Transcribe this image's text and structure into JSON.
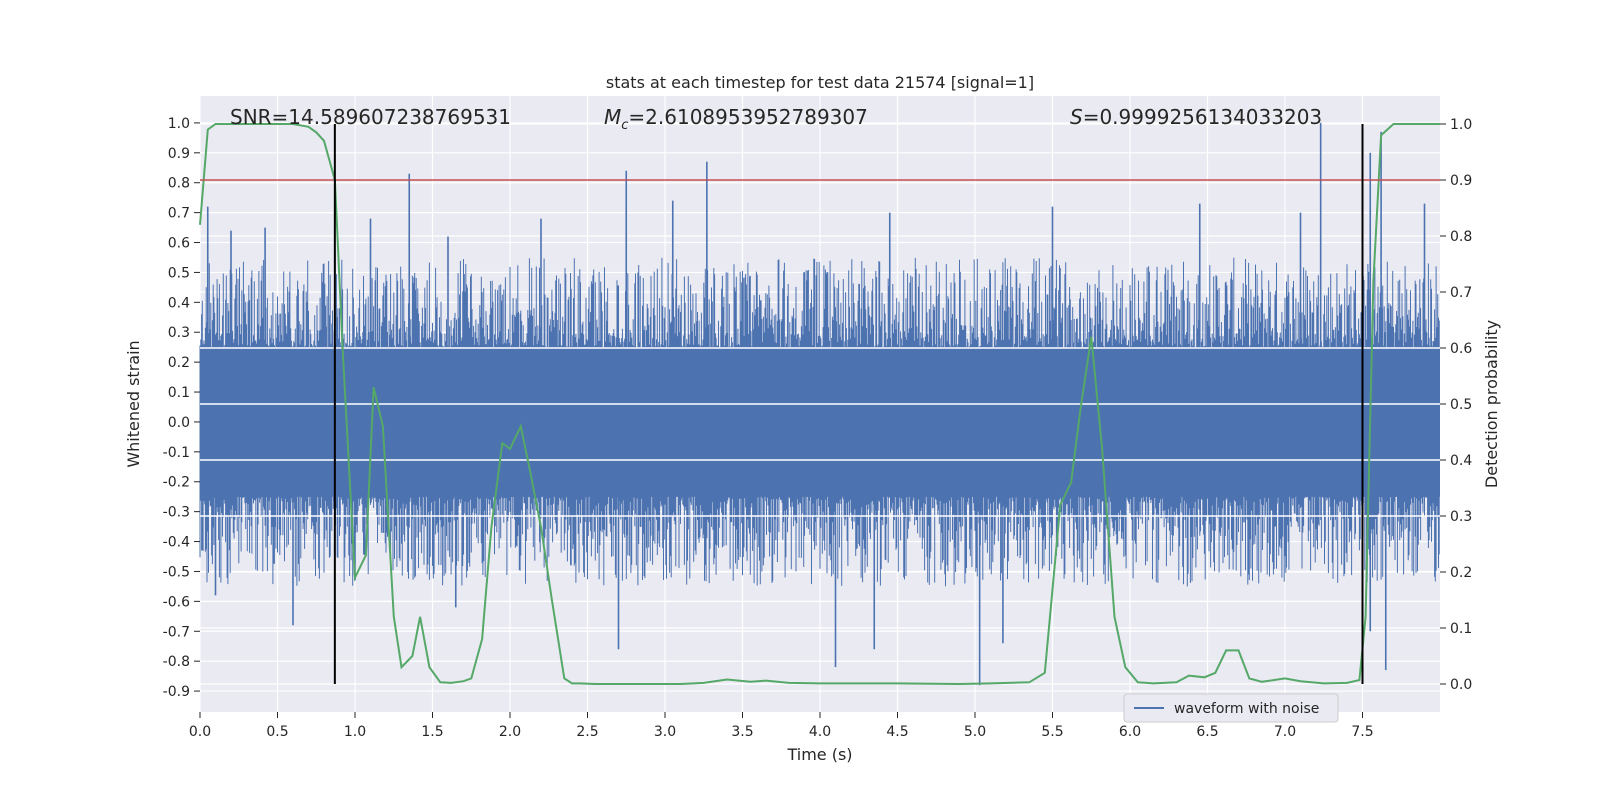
{
  "chart_data": {
    "type": "line",
    "title": "stats at each timestep for test data 21574 [signal=1]",
    "xlabel": "Time (s)",
    "ylabel_left": "Whitened strain",
    "ylabel_right": "Detection probability",
    "xlim": [
      0,
      8
    ],
    "ylim_left": [
      -0.97,
      1.09
    ],
    "ylim_right": [
      0,
      1
    ],
    "x_ticks": [
      "0.0",
      "0.5",
      "1.0",
      "1.5",
      "2.0",
      "2.5",
      "3.0",
      "3.5",
      "4.0",
      "4.5",
      "5.0",
      "5.5",
      "6.0",
      "6.5",
      "7.0",
      "7.5"
    ],
    "y_ticks_left": [
      "1.0",
      "0.9",
      "0.8",
      "0.7",
      "0.6",
      "0.5",
      "0.4",
      "0.3",
      "0.2",
      "0.1",
      "0.0",
      "-0.1",
      "-0.2",
      "-0.3",
      "-0.4",
      "-0.5",
      "-0.6",
      "-0.7",
      "-0.8",
      "-0.9"
    ],
    "y_ticks_right": [
      "1.0",
      "0.9",
      "0.8",
      "0.7",
      "0.6",
      "0.5",
      "0.4",
      "0.3",
      "0.2",
      "0.1",
      "0.0"
    ],
    "grid": true,
    "legend_position": "lower-right",
    "annotations": {
      "snr": "SNR=14.589607238769531",
      "mc_symbol": "M",
      "mc_sub": "c",
      "mc_value": "=2.6108953952789307",
      "s_symbol": "S",
      "s_value": "=0.9999256134033203"
    },
    "vertical_lines_x": [
      0.87,
      7.5
    ],
    "threshold": 0.9,
    "series": [
      {
        "name": "waveform with noise",
        "axis": "left",
        "color": "#4c72b0",
        "envelope": {
          "upper": 0.55,
          "lower": -0.55,
          "core": 0.25
        },
        "peaks": [
          {
            "x": 0.05,
            "y": 0.72
          },
          {
            "x": 0.2,
            "y": 0.64
          },
          {
            "x": 0.42,
            "y": 0.65
          },
          {
            "x": 0.87,
            "y": 0.57
          },
          {
            "x": 1.1,
            "y": 0.68
          },
          {
            "x": 1.35,
            "y": 0.83
          },
          {
            "x": 1.6,
            "y": 0.62
          },
          {
            "x": 2.2,
            "y": 0.68
          },
          {
            "x": 2.75,
            "y": 0.84
          },
          {
            "x": 3.05,
            "y": 0.74
          },
          {
            "x": 3.27,
            "y": 0.87
          },
          {
            "x": 4.45,
            "y": 0.7
          },
          {
            "x": 5.5,
            "y": 0.72
          },
          {
            "x": 6.45,
            "y": 0.73
          },
          {
            "x": 7.1,
            "y": 0.7
          },
          {
            "x": 7.23,
            "y": 1.0
          },
          {
            "x": 7.55,
            "y": 0.9
          },
          {
            "x": 7.62,
            "y": 0.97
          },
          {
            "x": 7.9,
            "y": 0.73
          }
        ],
        "troughs": [
          {
            "x": 0.1,
            "y": -0.58
          },
          {
            "x": 0.6,
            "y": -0.68
          },
          {
            "x": 1.0,
            "y": -0.53
          },
          {
            "x": 1.65,
            "y": -0.62
          },
          {
            "x": 2.7,
            "y": -0.76
          },
          {
            "x": 4.1,
            "y": -0.82
          },
          {
            "x": 4.35,
            "y": -0.76
          },
          {
            "x": 5.03,
            "y": -0.88
          },
          {
            "x": 5.18,
            "y": -0.74
          },
          {
            "x": 7.55,
            "y": -0.7
          },
          {
            "x": 7.65,
            "y": -0.83
          }
        ]
      },
      {
        "name": "detection probability",
        "axis": "right",
        "color": "#55a868",
        "x": [
          0.0,
          0.05,
          0.1,
          0.2,
          0.3,
          0.4,
          0.5,
          0.6,
          0.7,
          0.75,
          0.8,
          0.87,
          0.92,
          1.0,
          1.07,
          1.12,
          1.18,
          1.25,
          1.3,
          1.37,
          1.42,
          1.48,
          1.55,
          1.62,
          1.7,
          1.75,
          1.82,
          1.88,
          1.95,
          2.0,
          2.07,
          2.13,
          2.2,
          2.27,
          2.35,
          2.4,
          2.45,
          2.55,
          2.7,
          2.9,
          3.1,
          3.25,
          3.4,
          3.55,
          3.65,
          3.8,
          4.0,
          4.5,
          4.9,
          5.1,
          5.35,
          5.45,
          5.55,
          5.62,
          5.68,
          5.75,
          5.82,
          5.9,
          5.97,
          6.05,
          6.15,
          6.3,
          6.38,
          6.48,
          6.55,
          6.62,
          6.7,
          6.77,
          6.85,
          7.0,
          7.1,
          7.25,
          7.4,
          7.48,
          7.52,
          7.57,
          7.62,
          7.7,
          8.0
        ],
        "y": [
          0.82,
          0.99,
          1.0,
          1.0,
          1.0,
          1.0,
          1.0,
          1.0,
          0.995,
          0.985,
          0.97,
          0.9,
          0.6,
          0.19,
          0.23,
          0.53,
          0.46,
          0.12,
          0.03,
          0.05,
          0.12,
          0.03,
          0.003,
          0.002,
          0.005,
          0.01,
          0.08,
          0.28,
          0.43,
          0.42,
          0.46,
          0.38,
          0.28,
          0.15,
          0.01,
          0.001,
          0.001,
          0.0,
          0.0,
          0.0,
          0.0,
          0.002,
          0.008,
          0.004,
          0.006,
          0.002,
          0.001,
          0.001,
          0.0,
          0.001,
          0.003,
          0.02,
          0.32,
          0.36,
          0.49,
          0.62,
          0.42,
          0.12,
          0.03,
          0.003,
          0.001,
          0.003,
          0.015,
          0.012,
          0.02,
          0.06,
          0.06,
          0.01,
          0.004,
          0.01,
          0.005,
          0.001,
          0.002,
          0.007,
          0.12,
          0.72,
          0.98,
          1.0,
          1.0
        ]
      }
    ]
  }
}
